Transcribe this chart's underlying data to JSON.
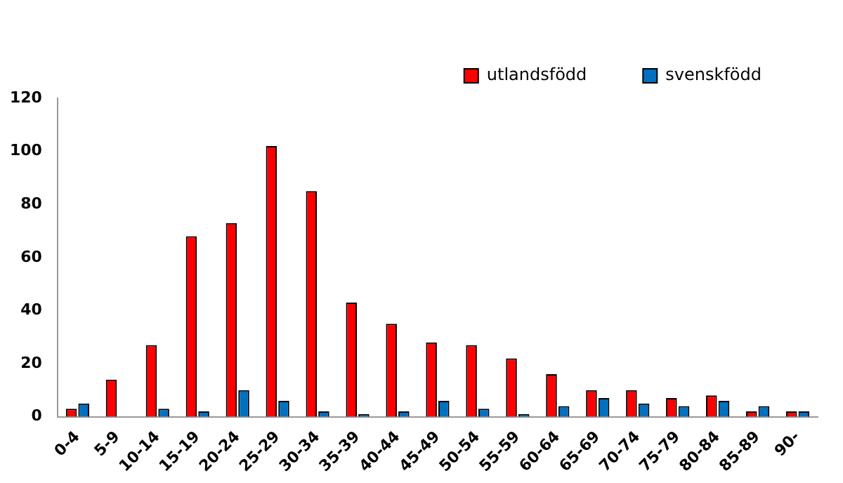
{
  "chart_data": {
    "type": "bar",
    "categories": [
      "0-4",
      "5-9",
      "10-14",
      "15-19",
      "20-24",
      "25-29",
      "30-34",
      "35-39",
      "40-44",
      "45-49",
      "50-54",
      "55-59",
      "60-64",
      "65-69",
      "70-74",
      "75-79",
      "80-84",
      "85-89",
      "90-"
    ],
    "series": [
      {
        "name": "utlandsfödd",
        "color": "#ff0000",
        "values": [
          3,
          14,
          27,
          68,
          73,
          102,
          85,
          43,
          35,
          28,
          27,
          22,
          16,
          10,
          10,
          7,
          8,
          2,
          2
        ]
      },
      {
        "name": "svenskfödd",
        "color": "#0070c0",
        "values": [
          5,
          0,
          3,
          2,
          10,
          6,
          2,
          1,
          2,
          6,
          3,
          1,
          4,
          7,
          5,
          4,
          6,
          4,
          2
        ]
      }
    ],
    "ylim": [
      0,
      120
    ],
    "yticks": [
      0,
      20,
      40,
      60,
      80,
      100,
      120
    ],
    "grid": false,
    "legend": "top right"
  }
}
